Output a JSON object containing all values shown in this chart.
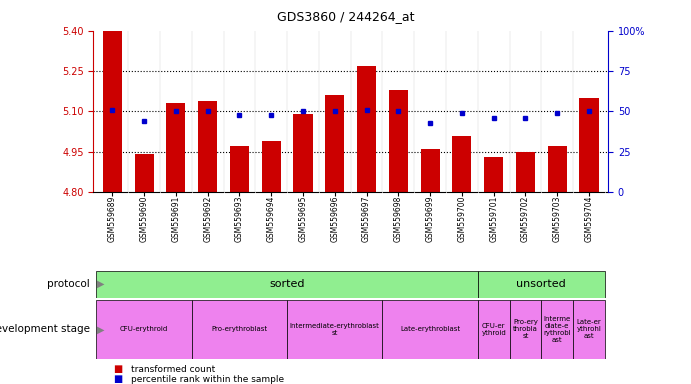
{
  "title": "GDS3860 / 244264_at",
  "samples": [
    "GSM559689",
    "GSM559690",
    "GSM559691",
    "GSM559692",
    "GSM559693",
    "GSM559694",
    "GSM559695",
    "GSM559696",
    "GSM559697",
    "GSM559698",
    "GSM559699",
    "GSM559700",
    "GSM559701",
    "GSM559702",
    "GSM559703",
    "GSM559704"
  ],
  "bar_values": [
    5.4,
    4.94,
    5.13,
    5.14,
    4.97,
    4.99,
    5.09,
    5.16,
    5.27,
    5.18,
    4.96,
    5.01,
    4.93,
    4.95,
    4.97,
    5.15
  ],
  "dot_values": [
    51,
    44,
    50,
    50,
    48,
    48,
    50,
    50,
    51,
    50,
    43,
    49,
    46,
    46,
    49,
    50
  ],
  "ylim_left": [
    4.8,
    5.4
  ],
  "ylim_right": [
    0,
    100
  ],
  "yticks_left": [
    4.8,
    4.95,
    5.1,
    5.25,
    5.4
  ],
  "yticks_right": [
    0,
    25,
    50,
    75,
    100
  ],
  "hlines": [
    4.95,
    5.1,
    5.25
  ],
  "bar_color": "#cc0000",
  "dot_color": "#0000cc",
  "bar_bottom": 4.8,
  "dev_stage_labels_sorted": [
    {
      "label": "CFU-erythroid",
      "start": 0,
      "end": 3
    },
    {
      "label": "Pro-erythroblast",
      "start": 3,
      "end": 6
    },
    {
      "label": "Intermediate-erythroblast\nst",
      "start": 6,
      "end": 9
    },
    {
      "label": "Late-erythroblast",
      "start": 9,
      "end": 12
    }
  ],
  "dev_stage_labels_unsorted": [
    {
      "label": "CFU-er\nythroid",
      "start": 12,
      "end": 13
    },
    {
      "label": "Pro-ery\nthrobla\nst",
      "start": 13,
      "end": 14
    },
    {
      "label": "Interme\ndiate-e\nrythrobl\nast",
      "start": 14,
      "end": 15
    },
    {
      "label": "Late-er\nythrohl\nast",
      "start": 15,
      "end": 16
    }
  ],
  "legend_bar_label": "transformed count",
  "legend_dot_label": "percentile rank within the sample",
  "right_yaxis_color": "#0000cc",
  "left_yaxis_color": "#cc0000"
}
